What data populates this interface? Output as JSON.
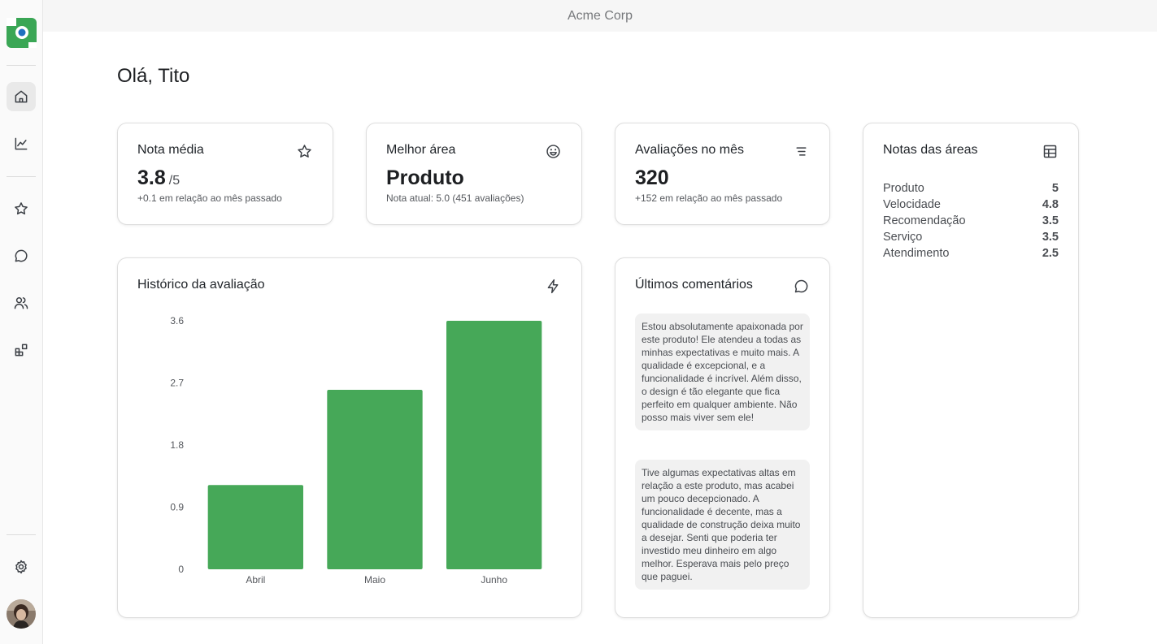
{
  "app": {
    "title": "Acme Corp"
  },
  "sidebar": {
    "items": [
      {
        "name": "home-icon",
        "active": true
      },
      {
        "name": "chart-icon",
        "active": false
      },
      {
        "name": "star-icon",
        "active": false
      },
      {
        "name": "message-icon",
        "active": false
      },
      {
        "name": "users-icon",
        "active": false
      },
      {
        "name": "apps-icon",
        "active": false
      }
    ],
    "settings_icon": "gear-icon",
    "avatar": "avatar"
  },
  "greeting": "Olá, Tito",
  "stats": {
    "nota_media": {
      "title": "Nota média",
      "value": "3.8",
      "suffix": "/5",
      "note": "+0.1 em relação ao mês passado",
      "icon": "star-icon"
    },
    "melhor_area": {
      "title": "Melhor área",
      "value": "Produto",
      "note": "Nota atual: 5.0 (451 avaliações)",
      "icon": "smile-icon"
    },
    "avaliacoes_mes": {
      "title": "Avaliações no mês",
      "value": "320",
      "note": "+152 em relação ao mês passado",
      "icon": "filter-lines-icon"
    }
  },
  "areas": {
    "title": "Notas das áreas",
    "icon": "table-icon",
    "rows": [
      {
        "label": "Produto",
        "value": "5"
      },
      {
        "label": "Velocidade",
        "value": "4.8"
      },
      {
        "label": "Recomendação",
        "value": "3.5"
      },
      {
        "label": "Serviço",
        "value": "3.5"
      },
      {
        "label": "Atendimento",
        "value": "2.5"
      }
    ]
  },
  "history": {
    "title": "Histórico da avaliação",
    "icon": "lightning-icon"
  },
  "chart_data": {
    "type": "bar",
    "title": "Histórico da avaliação",
    "categories": [
      "Abril",
      "Maio",
      "Junho"
    ],
    "values": [
      1.22,
      2.6,
      3.6
    ],
    "yticks": [
      "0",
      "0.9",
      "1.8",
      "2.7",
      "3.6"
    ],
    "ylim": [
      0,
      3.6
    ],
    "color": "#46a858",
    "xlabel": "",
    "ylabel": ""
  },
  "comments": {
    "title": "Últimos comentários",
    "icon": "chat-icon",
    "items": [
      "Estou absolutamente apaixonada por este produto! Ele atendeu a todas as minhas expectativas e muito mais. A qualidade é excepcional, e a funcionalidade é incrível. Além disso, o design é tão elegante que fica perfeito em qualquer ambiente. Não posso mais viver sem ele!",
      "Tive algumas expectativas altas em relação a este produto, mas acabei um pouco decepcionado. A funcionalidade é decente, mas a qualidade de construção deixa muito a desejar. Senti que poderia ter investido meu dinheiro em algo melhor. Esperava mais pelo preço que paguei."
    ]
  },
  "colors": {
    "accent": "#46a858",
    "logo_green": "#3aa655",
    "logo_blue": "#1f6fbf"
  }
}
